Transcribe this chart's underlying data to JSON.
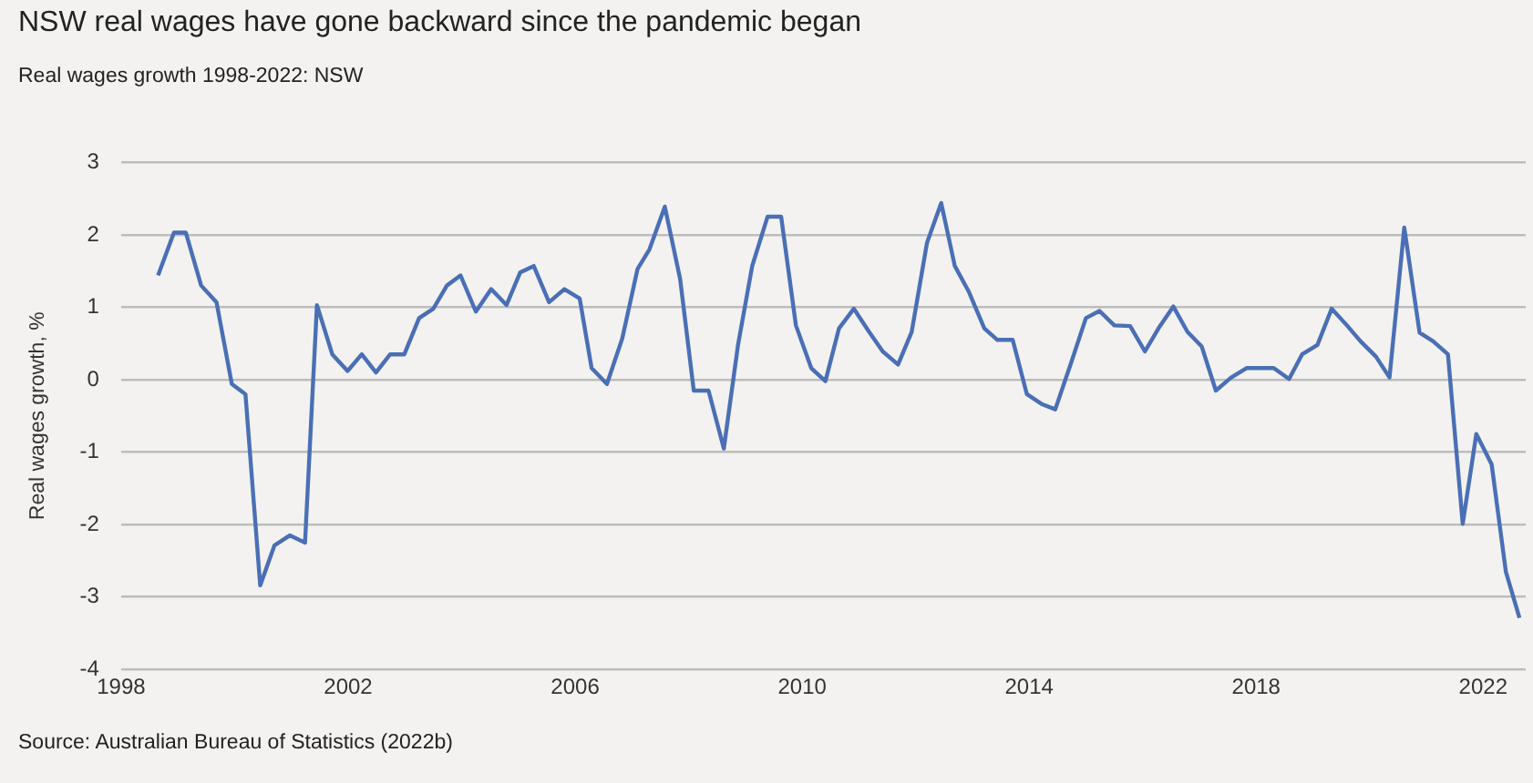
{
  "chart_data": {
    "type": "line",
    "title": "NSW real wages have gone backward since the pandemic began",
    "subtitle": "Real wages growth 1998-2022: NSW",
    "ylabel": "Real wages growth, %",
    "annotations": [
      "Source: Australian Bureau of Statistics (2022b)"
    ],
    "x": [
      1998.65,
      1998.93,
      1999.14,
      1999.41,
      1999.68,
      1999.95,
      2000.19,
      2000.45,
      2000.7,
      2000.97,
      2001.24,
      2001.45,
      2001.72,
      2001.99,
      2002.24,
      2002.49,
      2002.74,
      2002.99,
      2003.25,
      2003.5,
      2003.74,
      2003.98,
      2004.25,
      2004.52,
      2004.79,
      2005.03,
      2005.27,
      2005.54,
      2005.81,
      2006.08,
      2006.29,
      2006.56,
      2006.83,
      2007.1,
      2007.31,
      2007.58,
      2007.85,
      2008.09,
      2008.35,
      2008.62,
      2008.87,
      2009.12,
      2009.39,
      2009.63,
      2009.89,
      2010.16,
      2010.41,
      2010.65,
      2010.91,
      2011.18,
      2011.42,
      2011.69,
      2011.93,
      2012.2,
      2012.45,
      2012.69,
      2012.94,
      2013.21,
      2013.44,
      2013.71,
      2013.96,
      2014.23,
      2014.46,
      2014.73,
      2015.0,
      2015.24,
      2015.5,
      2015.78,
      2016.04,
      2016.28,
      2016.54,
      2016.79,
      2017.04,
      2017.29,
      2017.56,
      2017.83,
      2018.06,
      2018.31,
      2018.58,
      2018.81,
      2019.08,
      2019.33,
      2019.6,
      2019.84,
      2020.11,
      2020.35,
      2020.61,
      2020.88,
      2021.12,
      2021.38,
      2021.64,
      2021.88,
      2022.15,
      2022.4,
      2022.64
    ],
    "series": [
      {
        "color": "#4a6fb5",
        "values": [
          1.44,
          2.03,
          2.03,
          1.3,
          1.07,
          -0.06,
          -0.2,
          -2.84,
          -2.29,
          -2.15,
          -2.25,
          1.03,
          0.35,
          0.12,
          0.35,
          0.1,
          0.35,
          0.35,
          0.85,
          0.98,
          1.3,
          1.44,
          0.94,
          1.25,
          1.03,
          1.48,
          1.57,
          1.07,
          1.25,
          1.12,
          0.16,
          -0.06,
          0.57,
          1.53,
          1.8,
          2.39,
          1.39,
          -0.15,
          -0.15,
          -0.95,
          0.48,
          1.57,
          2.25,
          2.25,
          0.75,
          0.16,
          -0.02,
          0.71,
          0.98,
          0.66,
          0.39,
          0.21,
          0.66,
          1.89,
          2.44,
          1.57,
          1.21,
          0.71,
          0.55,
          0.55,
          -0.2,
          -0.34,
          -0.41,
          0.21,
          0.85,
          0.95,
          0.75,
          0.74,
          0.39,
          0.71,
          1.01,
          0.66,
          0.46,
          -0.15,
          0.03,
          0.16,
          0.16,
          0.16,
          0.01,
          0.35,
          0.48,
          0.98,
          0.75,
          0.53,
          0.32,
          0.03,
          2.1,
          0.65,
          0.53,
          0.35,
          -1.99,
          -0.75,
          -1.17,
          -2.65,
          -3.29
        ]
      }
    ],
    "xlim": [
      1998,
      2022.75
    ],
    "xticks": [
      1998,
      2002,
      2006,
      2010,
      2014,
      2018,
      2022
    ],
    "ylim": [
      -4,
      3
    ],
    "yticks": [
      -4,
      -3,
      -2,
      -1,
      0,
      1,
      2,
      3
    ],
    "grid": "y",
    "legend": false,
    "marker": "none",
    "line_style": "solid"
  }
}
